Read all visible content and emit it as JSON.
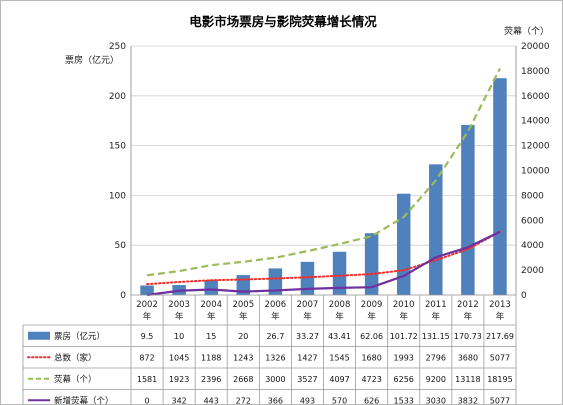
{
  "chart_data": {
    "type": "bar",
    "title": "电影市场票房与影院荧幕增长情况",
    "ylabel": "票房（亿元）",
    "y2label": "荧幕（个）",
    "ylim": [
      0,
      250
    ],
    "y2lim": [
      0,
      20000
    ],
    "yticks": [
      0,
      50,
      100,
      150,
      200,
      250
    ],
    "y2ticks": [
      0,
      2000,
      4000,
      6000,
      8000,
      10000,
      12000,
      14000,
      16000,
      18000,
      20000
    ],
    "categories": [
      "2002",
      "2003",
      "2004",
      "2005",
      "2006",
      "2007",
      "2008",
      "2009",
      "2010",
      "2011",
      "2012",
      "2013"
    ],
    "category_suffix": "年",
    "series": [
      {
        "name": "票房（亿元）",
        "kind": "bar",
        "axis": "left",
        "color": "#4f81bd",
        "values": [
          9.5,
          10,
          15,
          20,
          26.7,
          33.27,
          43.41,
          62.06,
          101.72,
          131.15,
          170.73,
          217.69
        ],
        "labels": [
          "9.5",
          "10",
          "15",
          "20",
          "26.7",
          "33.27",
          "43.41",
          "62.06",
          "101.72",
          "131.15",
          "170.73",
          "217.69"
        ]
      },
      {
        "name": "总数（家）",
        "kind": "line",
        "style": "dotted",
        "axis": "right",
        "color": "#e8302d",
        "values": [
          872,
          1045,
          1188,
          1243,
          1326,
          1427,
          1545,
          1680,
          1993,
          2796,
          3680,
          5077
        ],
        "labels": [
          "872",
          "1045",
          "1188",
          "1243",
          "1326",
          "1427",
          "1545",
          "1680",
          "1993",
          "2796",
          "3680",
          "5077"
        ]
      },
      {
        "name": "荧幕（个）",
        "kind": "line",
        "style": "dashed",
        "axis": "right",
        "color": "#9bbb59",
        "values": [
          1581,
          1923,
          2396,
          2668,
          3000,
          3527,
          4097,
          4723,
          6256,
          9200,
          13118,
          18195
        ],
        "labels": [
          "1581",
          "1923",
          "2396",
          "2668",
          "3000",
          "3527",
          "4097",
          "4723",
          "6256",
          "9200",
          "13118",
          "18195"
        ]
      },
      {
        "name": "新增荧幕（个）",
        "kind": "line",
        "style": "solid",
        "axis": "right",
        "color": "#7030a0",
        "values": [
          0,
          342,
          443,
          272,
          366,
          493,
          570,
          626,
          1533,
          3030,
          3832,
          5077
        ],
        "labels": [
          "0",
          "342",
          "443",
          "272",
          "366",
          "493",
          "570",
          "626",
          "1533",
          "3030",
          "3832",
          "5077"
        ]
      }
    ]
  }
}
